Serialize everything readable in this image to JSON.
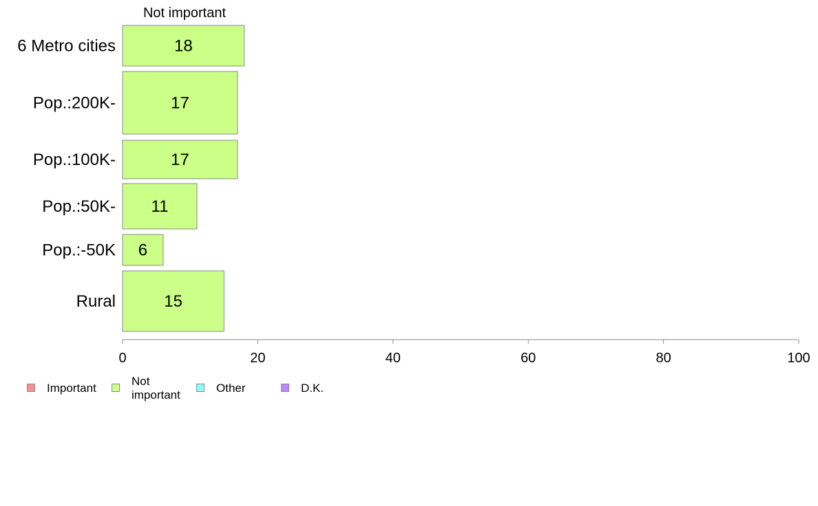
{
  "chart_data": {
    "type": "bar",
    "orientation": "horizontal",
    "column_header": "Not important",
    "categories": [
      "6 Metro cities",
      "Pop.:200K-",
      "Pop.:100K-",
      "Pop.:50K-",
      "Pop.:-50K",
      "Rural"
    ],
    "series": [
      {
        "name": "Not important",
        "color": "#ccff88",
        "values": [
          18,
          17,
          17,
          11,
          6,
          15
        ]
      }
    ],
    "xlim": [
      0,
      100
    ],
    "xticks": [
      0,
      20,
      40,
      60,
      80,
      100
    ],
    "bar_stroke": "#888888",
    "legend": [
      {
        "label": "Important",
        "color": "#ff8f8f"
      },
      {
        "label": "Not\nimportant",
        "color": "#ccff88"
      },
      {
        "label": "Other",
        "color": "#88ffff"
      },
      {
        "label": "D.K.",
        "color": "#bb88ff"
      }
    ],
    "legend_position": "bottom-left",
    "grid": false
  }
}
